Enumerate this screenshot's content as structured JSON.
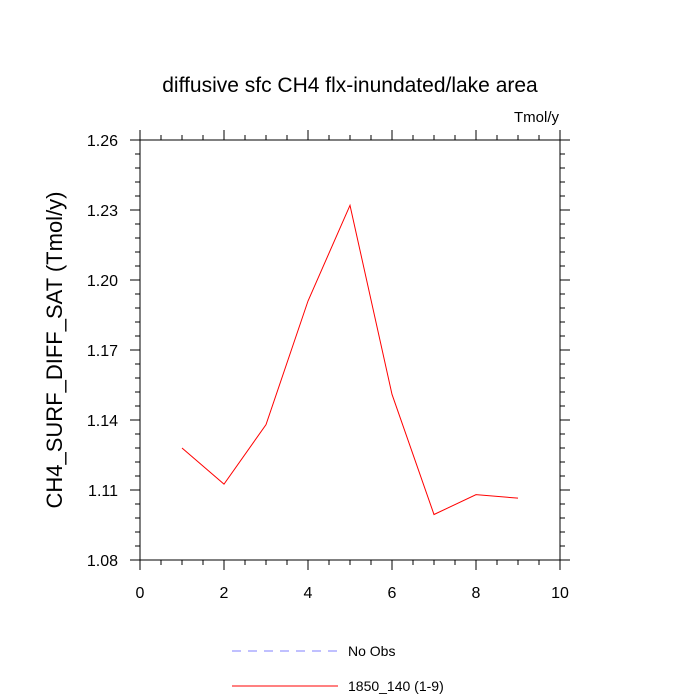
{
  "chart_data": {
    "type": "line",
    "title": "diffusive sfc CH4 flx-inundated/lake area",
    "units_label": "Tmol/y",
    "ylabel": "CH4_SURF_DIFF_SAT  (Tmol/y)",
    "xlabel": "",
    "xlim": [
      0,
      10
    ],
    "ylim": [
      1.08,
      1.26
    ],
    "x_ticks": [
      0,
      2,
      4,
      6,
      8,
      10
    ],
    "y_ticks": [
      1.08,
      1.11,
      1.14,
      1.17,
      1.2,
      1.23,
      1.26
    ],
    "x_tick_labels": [
      "0",
      "2",
      "4",
      "6",
      "8",
      "10"
    ],
    "y_tick_labels": [
      "1.08",
      "1.11",
      "1.14",
      "1.17",
      "1.20",
      "1.23",
      "1.26"
    ],
    "grid": false,
    "legend_position": "bottom",
    "series": [
      {
        "name": "1850_140 (1-9)",
        "color": "#ff0000",
        "style": "solid",
        "x": [
          1,
          2,
          3,
          4,
          5,
          6,
          7,
          8,
          9
        ],
        "values": [
          1.128,
          1.1125,
          1.138,
          1.191,
          1.232,
          1.151,
          1.0995,
          1.108,
          1.1065
        ]
      }
    ],
    "legend": [
      {
        "label": "No Obs",
        "color": "#8080ff",
        "style": "dashed"
      },
      {
        "label": "1850_140 (1-9)",
        "color": "#ff0000",
        "style": "solid"
      }
    ]
  }
}
